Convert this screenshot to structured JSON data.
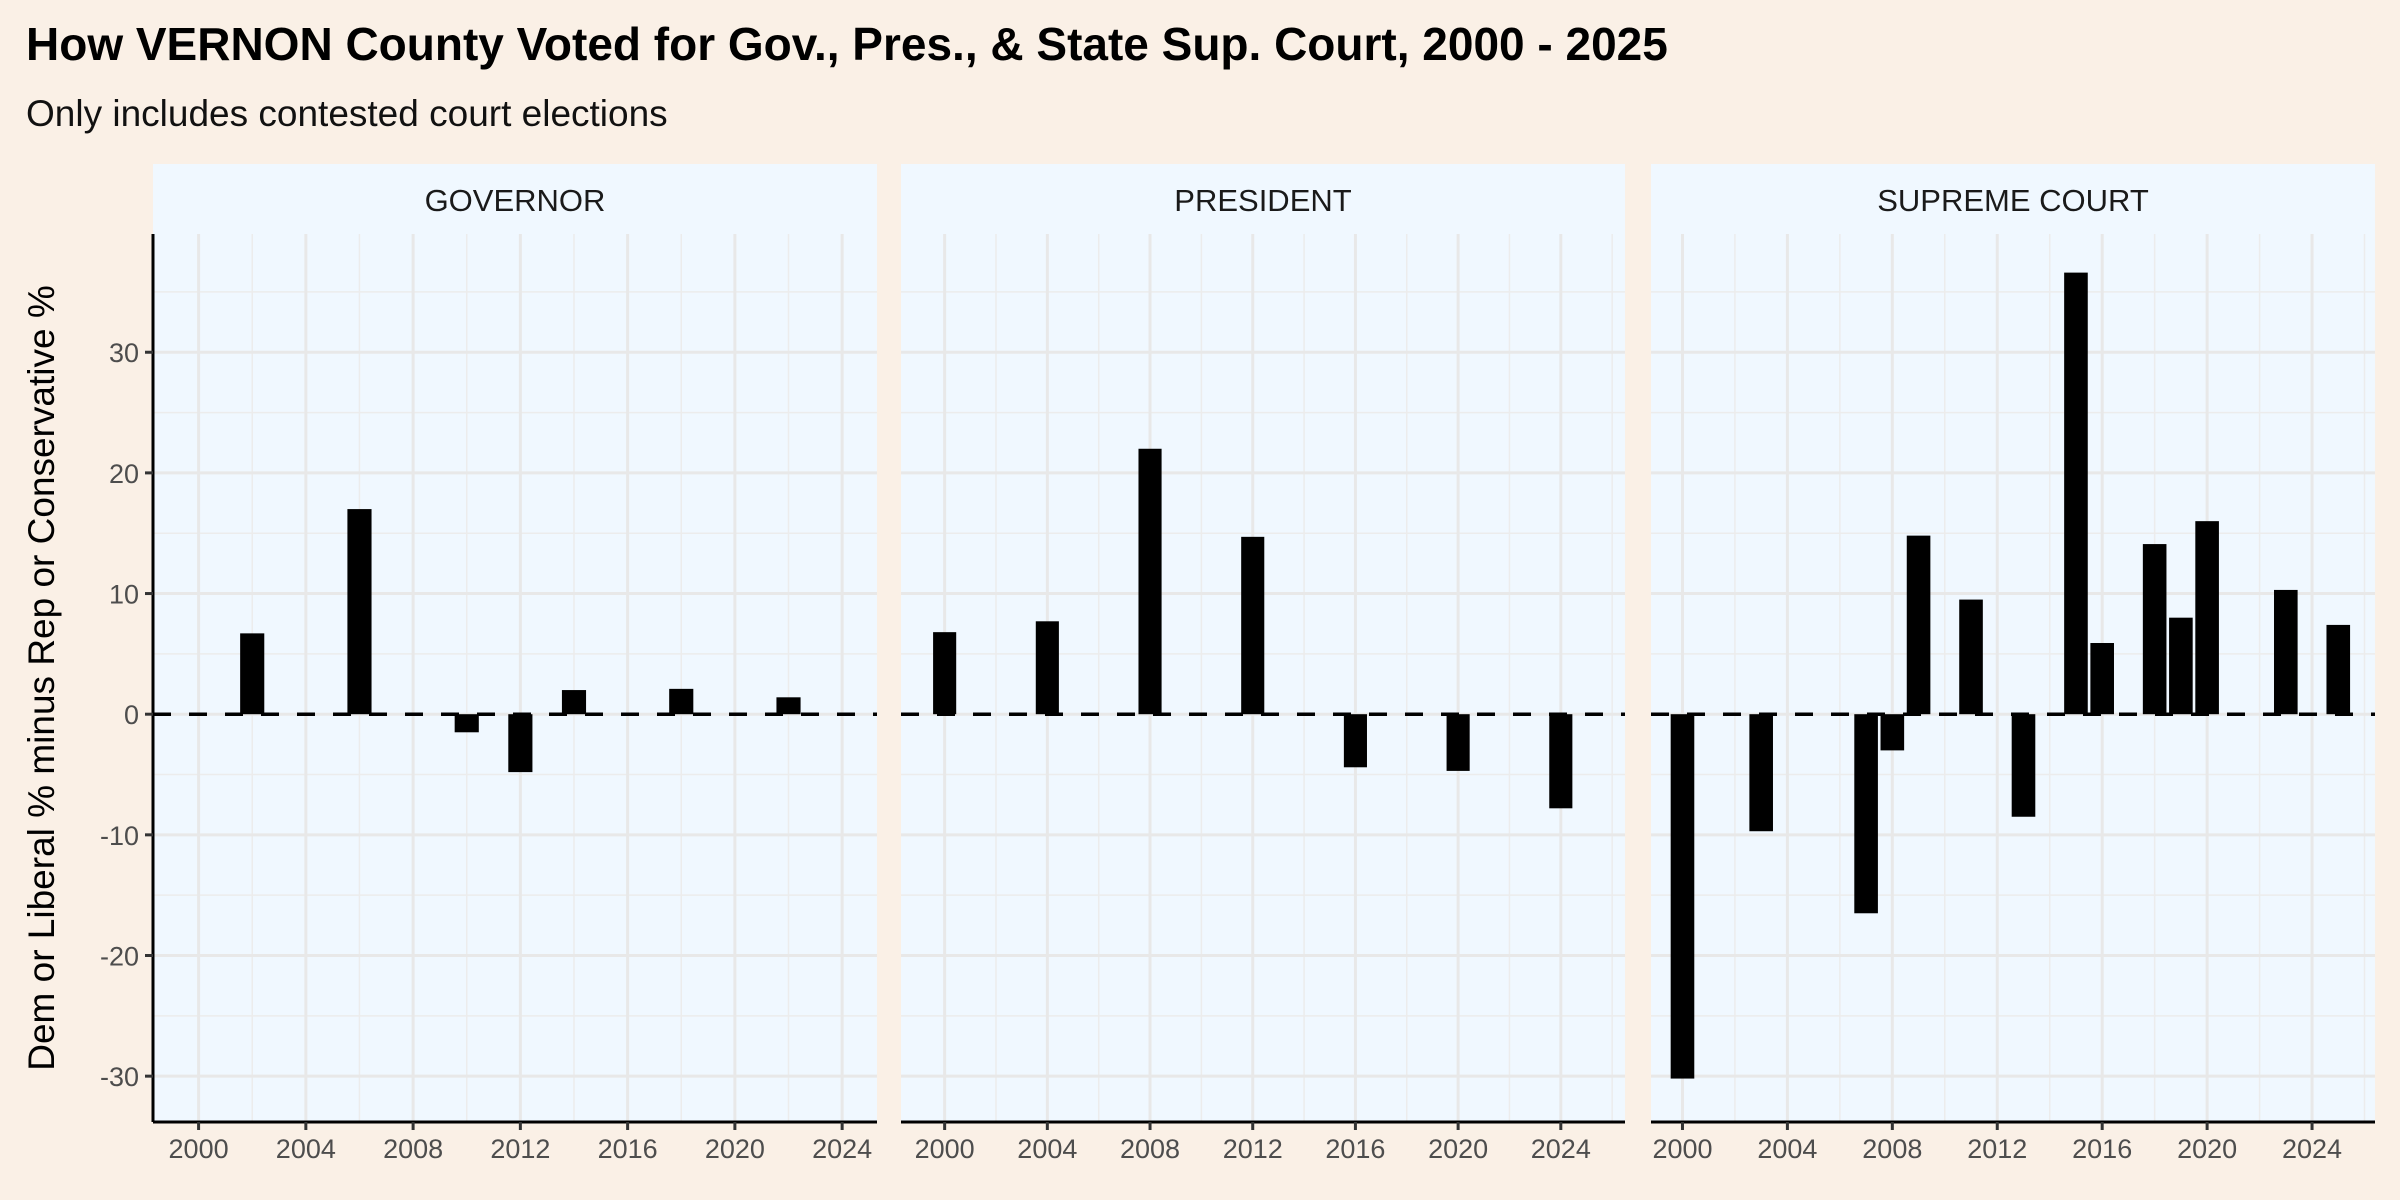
{
  "chart_data": {
    "type": "bar",
    "title": "How VERNON County Voted for Gov., Pres., & State Sup. Court, 2000 - 2025",
    "subtitle": "Only includes contested court elections",
    "ylabel": "Dem or Liberal % minus Rep or Conservative %",
    "xlabel": "",
    "ylim": [
      -33.8,
      39.8
    ],
    "yticks": [
      -30,
      -20,
      -10,
      0,
      10,
      20,
      30
    ],
    "xticks": [
      2000,
      2004,
      2008,
      2012,
      2016,
      2020,
      2024
    ],
    "grid": true,
    "reference_line": {
      "y": 0,
      "style": "dashed"
    },
    "colors": {
      "background": "#FAF0E6",
      "panel": "#F0F8FF",
      "bar": "#000000",
      "grid": "#E8E8E8"
    },
    "panels": [
      {
        "name": "GOVERNOR",
        "xlim": [
          1998.3,
          2025.3
        ],
        "x": [
          2002,
          2006,
          2010,
          2012,
          2014,
          2018,
          2022
        ],
        "values": [
          6.7,
          17.0,
          -1.5,
          -4.8,
          2.0,
          2.1,
          1.4
        ]
      },
      {
        "name": "PRESIDENT",
        "xlim": [
          1998.3,
          2026.5
        ],
        "x": [
          2000,
          2004,
          2008,
          2012,
          2016,
          2020,
          2024
        ],
        "values": [
          6.8,
          7.7,
          22.0,
          14.7,
          -4.4,
          -4.7,
          -7.8
        ]
      },
      {
        "name": "SUPREME COURT",
        "xlim": [
          1998.8,
          2026.4
        ],
        "x": [
          2000,
          2003,
          2007,
          2008,
          2009,
          2011,
          2013,
          2015,
          2016,
          2018,
          2019,
          2020,
          2023,
          2025
        ],
        "values": [
          -30.2,
          -9.7,
          -16.5,
          -3.0,
          14.8,
          9.5,
          -8.5,
          36.6,
          5.9,
          14.1,
          8.0,
          16.0,
          10.3,
          7.4
        ]
      }
    ]
  }
}
